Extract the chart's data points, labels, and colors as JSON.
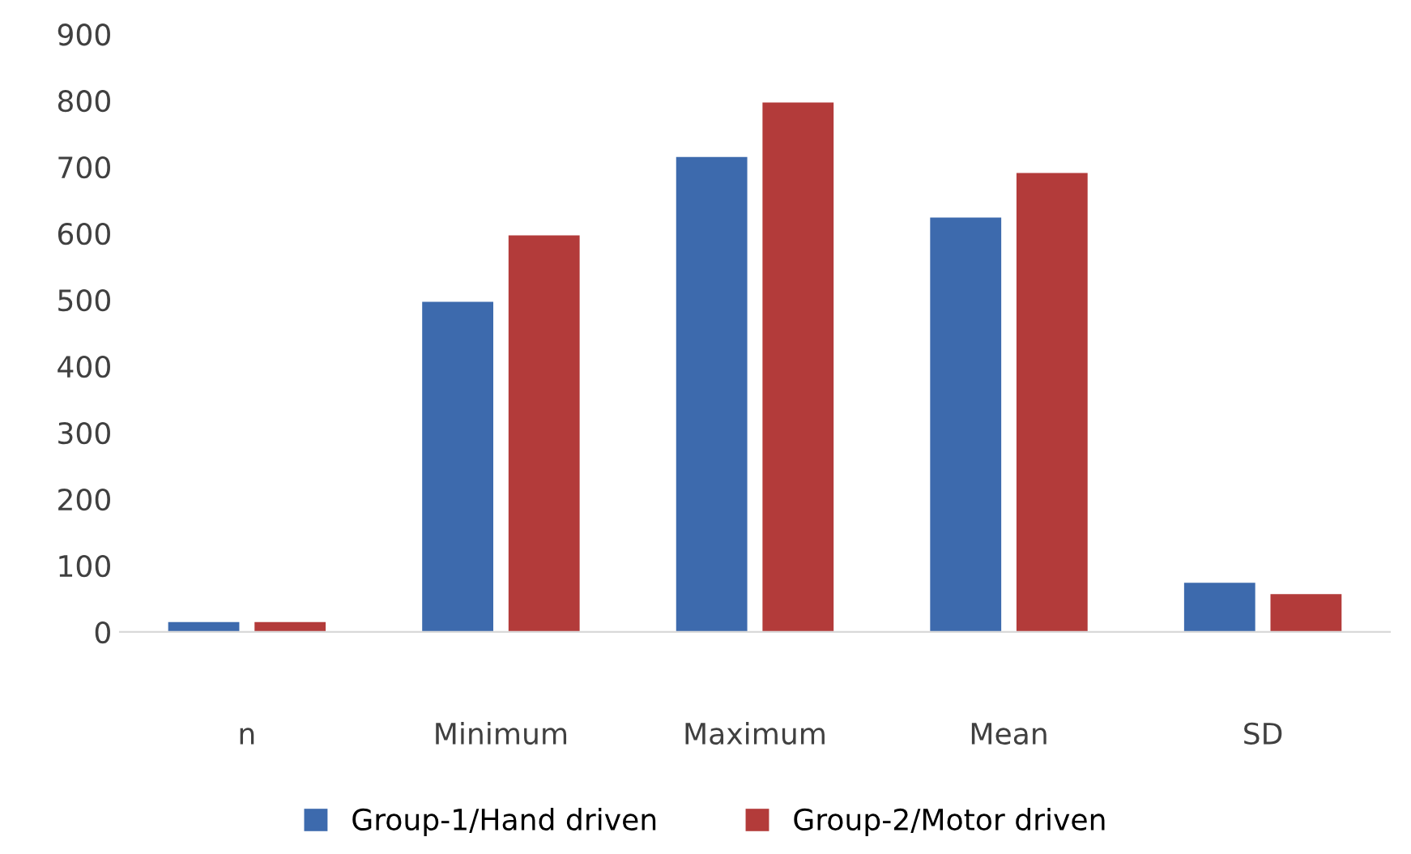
{
  "chart_data": {
    "type": "bar",
    "categories": [
      "n",
      "Minimum",
      "Maximum",
      "Mean",
      "SD"
    ],
    "series": [
      {
        "name": "Group-1/Hand driven",
        "color": "#3d6aad",
        "values": [
          15,
          497,
          715,
          624,
          74
        ]
      },
      {
        "name": "Group-2/Motor driven",
        "color": "#b33b3a",
        "values": [
          15,
          597,
          797,
          691,
          57
        ]
      }
    ],
    "ylim": [
      0,
      900
    ],
    "yticks": [
      0,
      100,
      200,
      300,
      400,
      500,
      600,
      700,
      800,
      900
    ],
    "grid": false,
    "legend": "bottom"
  }
}
